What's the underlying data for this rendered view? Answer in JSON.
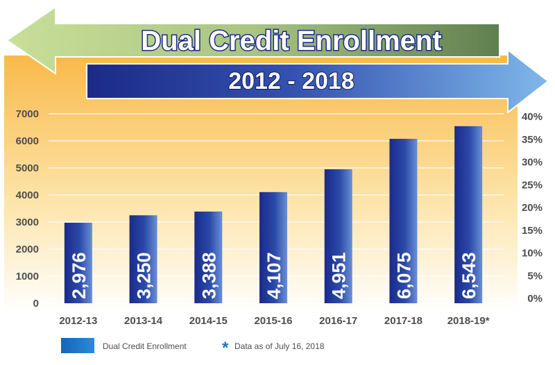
{
  "chart_data": {
    "type": "bar",
    "title": "Dual Credit Enrollment",
    "subtitle": "2012 - 2018",
    "categories": [
      "2012-13",
      "2013-14",
      "2014-15",
      "2015-16",
      "2016-17",
      "2017-18",
      "2018-19*"
    ],
    "series": [
      {
        "name": "Dual Credit Enrollment",
        "values": [
          2976,
          3250,
          3388,
          4107,
          4951,
          6075,
          6543
        ],
        "value_labels": [
          "2,976",
          "3,250",
          "3,388",
          "4,107",
          "4,951",
          "6,075",
          "6,543"
        ]
      }
    ],
    "ylim": [
      0,
      7000
    ],
    "y_ticks": [
      "0",
      "1000",
      "2000",
      "3000",
      "4000",
      "5000",
      "6000",
      "7000"
    ],
    "y2_ticks": [
      "0%",
      "5%",
      "10%",
      "15%",
      "20%",
      "25%",
      "30%",
      "35%",
      "40%"
    ],
    "grid": true,
    "legend_placement": "bottom",
    "footnote": "Data as of July 16, 2018",
    "footnote_marker": "*",
    "colors": {
      "bar_dark": "#1a2a8a",
      "bar_light": "#6b8fd6",
      "legend_swatch": "#1a75c8",
      "footnote_star": "#1a75c8",
      "bg_top": "#f9b94a",
      "bg_bottom": "#ffffff",
      "left_arrow_light": "#c9df98",
      "left_arrow_dark": "#5f7f4f",
      "right_arrow_dark": "#1b2a86",
      "right_arrow_light": "#7fb8ea"
    }
  }
}
